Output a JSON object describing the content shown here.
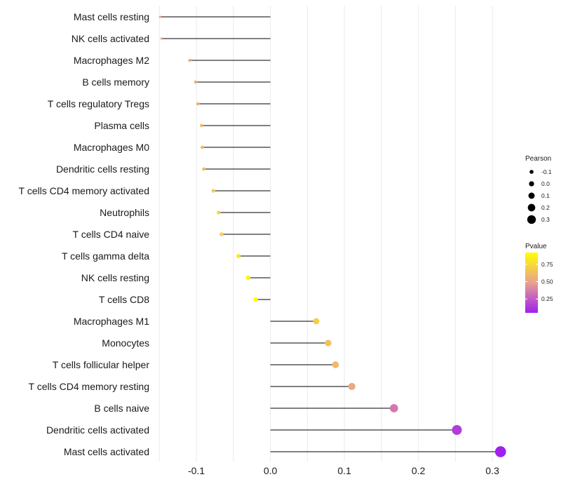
{
  "chart_data": {
    "type": "lollipop",
    "title": "",
    "xlabel": "",
    "ylabel": "",
    "xlim": [
      -0.155,
      0.315
    ],
    "x_ticks": [
      -0.1,
      0.0,
      0.1,
      0.2,
      0.3
    ],
    "x_tick_labels": [
      "-0.1",
      "0.0",
      "0.1",
      "0.2",
      "0.3"
    ],
    "grid": true,
    "legend_position": "right",
    "colors": {
      "low": "#a020f0",
      "mid": "#e8a090",
      "high": "#ffff00",
      "stick": "#000000",
      "grid": "#ebebeb"
    },
    "points": [
      {
        "label": "Mast cells resting",
        "pearson": -0.149,
        "pvalue": 0.5
      },
      {
        "label": "NK cells activated",
        "pearson": -0.147,
        "pvalue": 0.5
      },
      {
        "label": "Macrophages M2",
        "pearson": -0.109,
        "pvalue": 0.52
      },
      {
        "label": "B cells memory",
        "pearson": -0.101,
        "pvalue": 0.55
      },
      {
        "label": "T cells regulatory  Tregs ",
        "pearson": -0.098,
        "pvalue": 0.57
      },
      {
        "label": "Plasma cells",
        "pearson": -0.093,
        "pvalue": 0.6
      },
      {
        "label": "Macrophages M0",
        "pearson": -0.092,
        "pvalue": 0.6
      },
      {
        "label": "Dendritic cells resting",
        "pearson": -0.09,
        "pvalue": 0.61
      },
      {
        "label": "T cells CD4 memory activated",
        "pearson": -0.077,
        "pvalue": 0.68
      },
      {
        "label": "Neutrophils",
        "pearson": -0.07,
        "pvalue": 0.71
      },
      {
        "label": "T cells CD4 naive",
        "pearson": -0.066,
        "pvalue": 0.72
      },
      {
        "label": "T cells gamma delta",
        "pearson": -0.043,
        "pvalue": 0.82
      },
      {
        "label": "NK cells resting",
        "pearson": -0.03,
        "pvalue": 0.88
      },
      {
        "label": "T cells CD8",
        "pearson": -0.02,
        "pvalue": 0.92
      },
      {
        "label": "Macrophages M1",
        "pearson": 0.062,
        "pvalue": 0.7
      },
      {
        "label": "Monocytes",
        "pearson": 0.078,
        "pvalue": 0.64
      },
      {
        "label": "T cells follicular helper",
        "pearson": 0.088,
        "pvalue": 0.6
      },
      {
        "label": "T cells CD4 memory resting",
        "pearson": 0.11,
        "pvalue": 0.52
      },
      {
        "label": "B cells naive",
        "pearson": 0.167,
        "pvalue": 0.35
      },
      {
        "label": "Dendritic cells activated",
        "pearson": 0.252,
        "pvalue": 0.15
      },
      {
        "label": "Mast cells activated",
        "pearson": 0.311,
        "pvalue": 0.05
      }
    ],
    "size_legend": {
      "title": "Pearson",
      "values": [
        -0.1,
        0.0,
        0.1,
        0.2,
        0.3
      ],
      "labels": [
        "-0.1",
        "0.0",
        "0.1",
        "0.2",
        "0.3"
      ]
    },
    "color_legend": {
      "title": "Pvalue",
      "range": [
        0.05,
        0.92
      ],
      "values": [
        0.75,
        0.5,
        0.25
      ],
      "labels": [
        "0.75",
        "0.50",
        "0.25"
      ]
    }
  }
}
